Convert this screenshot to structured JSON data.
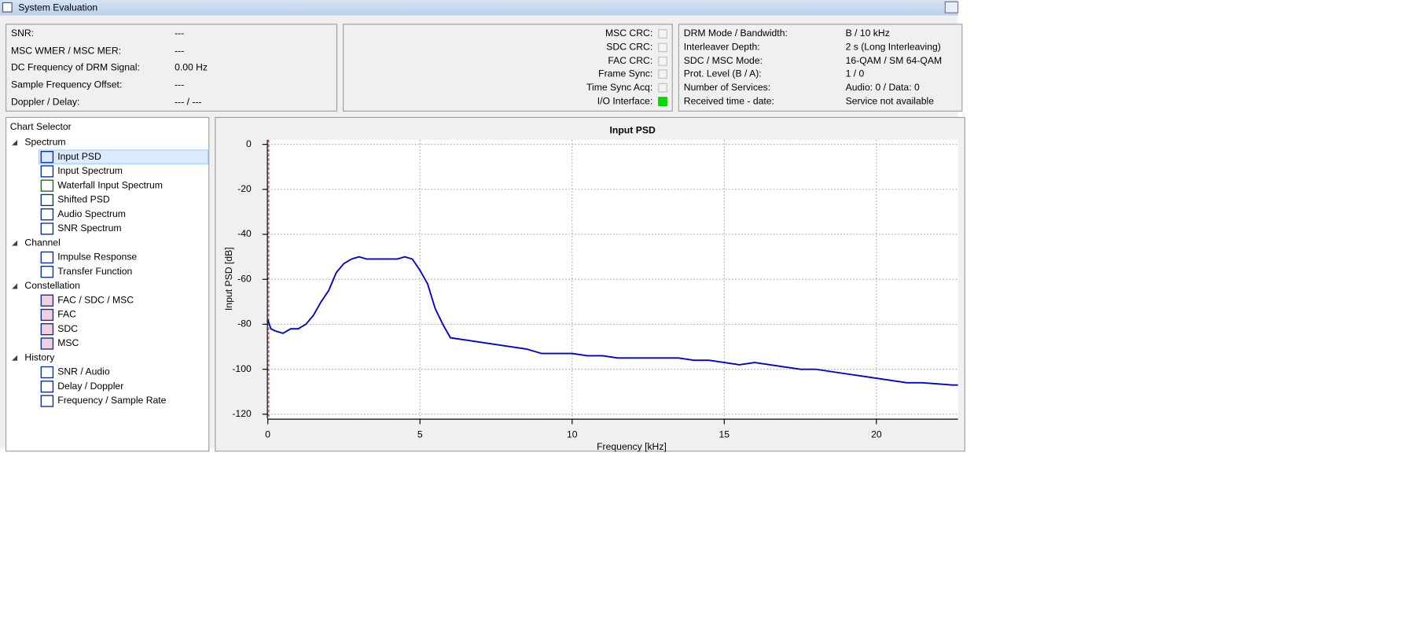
{
  "window": {
    "title": "System Evaluation"
  },
  "status": {
    "rows": [
      [
        "SNR:",
        "---"
      ],
      [
        "MSC WMER / MSC MER:",
        "---"
      ],
      [
        "DC Frequency of DRM Signal:",
        "0.00 Hz"
      ],
      [
        "Sample Frequency Offset:",
        "---"
      ],
      [
        "Doppler / Delay:",
        "--- / ---"
      ]
    ]
  },
  "indicators": {
    "rows": [
      "MSC CRC:",
      "SDC CRC:",
      "FAC CRC:",
      "Frame Sync:",
      "Time Sync Acq:",
      "I/O Interface:"
    ]
  },
  "info": {
    "rows": [
      [
        "DRM Mode / Bandwidth:",
        "B / 10 kHz"
      ],
      [
        "Interleaver Depth:",
        "2 s (Long Interleaving)"
      ],
      [
        "SDC / MSC Mode:",
        "16-QAM / SM 64-QAM"
      ],
      [
        "Prot. Level (B / A):",
        "1 / 0"
      ],
      [
        "Number of Services:",
        "Audio: 0 / Data: 0"
      ],
      [
        "Received time - date:",
        "Service not available"
      ]
    ]
  },
  "selector": {
    "title": "Chart Selector",
    "groups": [
      {
        "label": "Spectrum",
        "items": [
          "Input PSD",
          "Input Spectrum",
          "Waterfall Input Spectrum",
          "Shifted PSD",
          "Audio Spectrum",
          "SNR Spectrum"
        ]
      },
      {
        "label": "Channel",
        "items": [
          "Impulse Response",
          "Transfer Function"
        ]
      },
      {
        "label": "Constellation",
        "items": [
          "FAC / SDC / MSC",
          "FAC",
          "SDC",
          "MSC"
        ]
      },
      {
        "label": "History",
        "items": [
          "SNR / Audio",
          "Delay / Doppler",
          "Frequency / Sample Rate"
        ]
      }
    ]
  },
  "chart_data": {
    "type": "line",
    "title": "Input PSD",
    "x_label": "Frequency [kHz]",
    "y_label": "Input PSD [dB]",
    "color": "#0000d0",
    "grid": true,
    "xlim": [
      0,
      22.68
    ],
    "ylim": [
      -122,
      2
    ],
    "xticks": [
      0,
      5,
      10,
      15,
      20
    ],
    "yticks": [
      0,
      -20,
      -40,
      -60,
      -80,
      -100,
      -120
    ],
    "x": [
      0,
      0.1,
      0.25,
      0.5,
      0.75,
      1,
      1.25,
      1.5,
      1.75,
      2,
      2.25,
      2.5,
      2.75,
      3,
      3.25,
      3.5,
      3.75,
      4,
      4.25,
      4.5,
      4.75,
      5,
      5.25,
      5.5,
      5.75,
      6,
      6.5,
      7,
      7.5,
      8,
      8.5,
      9,
      9.5,
      10,
      10.5,
      11,
      11.5,
      12,
      12.5,
      13,
      13.5,
      14,
      14.5,
      15,
      15.5,
      16,
      16.5,
      17,
      17.5,
      18,
      18.5,
      19,
      19.5,
      20,
      20.5,
      21,
      21.5,
      22,
      22.5,
      22.68
    ],
    "values": [
      -78,
      -82,
      -83,
      -84,
      -82,
      -82,
      -80,
      -76,
      -70,
      -65,
      -57,
      -53,
      -51,
      -50,
      -51,
      -51,
      -51,
      -51,
      -51,
      -50,
      -51,
      -56,
      -62,
      -73,
      -80,
      -86,
      -87,
      -88,
      -89,
      -90,
      -91,
      -93,
      -93,
      -93,
      -94,
      -94,
      -95,
      -95,
      -95,
      -95,
      -95,
      -96,
      -96,
      -97,
      -98,
      -97,
      -98,
      -99,
      -100,
      -100,
      -101,
      -102,
      -103,
      -104,
      -105,
      -106,
      -106,
      -106.5,
      -107,
      -107
    ]
  }
}
